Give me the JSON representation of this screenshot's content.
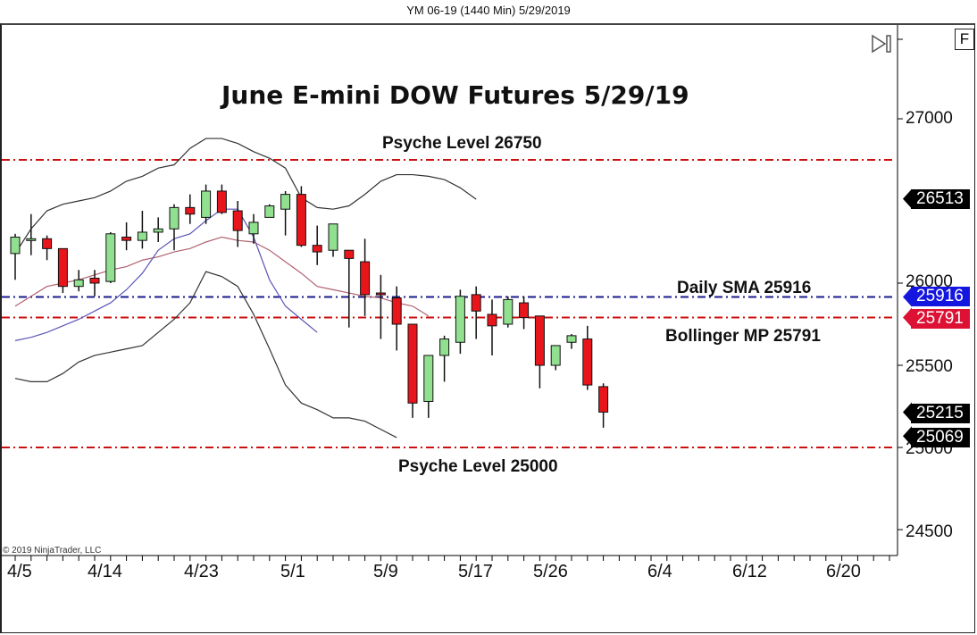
{
  "window": {
    "title": "YM 06-19 (1440 Min)  5/29/2019"
  },
  "toolbar": {
    "f_button": "F",
    "scroll_end_icon": "skip-to-end-icon"
  },
  "copyright": "© 2019 NinjaTrader, LLC",
  "colors": {
    "bull": "#90e090",
    "bear": "#e8151b",
    "psyche_line": "#cc1010",
    "sma_line": "#1a1a8c",
    "bollinger_mid": "#b06070",
    "bollinger_upper_lower": "#333333",
    "sma_curve": "#5a55b5",
    "badge_black": "#000000",
    "badge_blue": "#1515e0",
    "badge_red": "#dd1133"
  },
  "chart_data": {
    "type": "candlestick",
    "title": "June E-mini DOW Futures 5/29/19",
    "instrument": "YM 06-19 (1440 Min) 5/29/2019",
    "xlabel": "",
    "ylabel": "",
    "ylim": [
      24200,
      27500
    ],
    "y_ticks": [
      27000,
      26000,
      25500,
      25000,
      24500
    ],
    "x_ticks": [
      "4/5",
      "4/14",
      "4/23",
      "5/1",
      "5/9",
      "5/17",
      "5/26",
      "6/4",
      "6/12",
      "6/20"
    ],
    "grid": false,
    "candles": [
      {
        "date": "4/5",
        "open": 26180,
        "high": 26300,
        "low": 26020,
        "close": 26280
      },
      {
        "date": "4/8",
        "open": 26270,
        "high": 26420,
        "low": 26170,
        "close": 26270
      },
      {
        "date": "4/9",
        "open": 26270,
        "high": 26290,
        "low": 26140,
        "close": 26210
      },
      {
        "date": "4/10",
        "open": 26210,
        "high": 26210,
        "low": 25940,
        "close": 25980
      },
      {
        "date": "4/11",
        "open": 25980,
        "high": 26080,
        "low": 25950,
        "close": 26020
      },
      {
        "date": "4/12",
        "open": 26030,
        "high": 26080,
        "low": 25920,
        "close": 26000
      },
      {
        "date": "4/15",
        "open": 26010,
        "high": 26310,
        "low": 26000,
        "close": 26300
      },
      {
        "date": "4/16",
        "open": 26280,
        "high": 26370,
        "low": 26200,
        "close": 26260
      },
      {
        "date": "4/17",
        "open": 26260,
        "high": 26440,
        "low": 26210,
        "close": 26310
      },
      {
        "date": "4/18",
        "open": 26310,
        "high": 26400,
        "low": 26250,
        "close": 26330
      },
      {
        "date": "4/22",
        "open": 26330,
        "high": 26480,
        "low": 26200,
        "close": 26460
      },
      {
        "date": "4/23",
        "open": 26460,
        "high": 26540,
        "low": 26360,
        "close": 26420
      },
      {
        "date": "4/24",
        "open": 26400,
        "high": 26600,
        "low": 26360,
        "close": 26560
      },
      {
        "date": "4/25",
        "open": 26560,
        "high": 26600,
        "low": 26420,
        "close": 26430
      },
      {
        "date": "4/26",
        "open": 26440,
        "high": 26500,
        "low": 26220,
        "close": 26320
      },
      {
        "date": "4/29",
        "open": 26300,
        "high": 26420,
        "low": 26240,
        "close": 26370
      },
      {
        "date": "4/30",
        "open": 26400,
        "high": 26480,
        "low": 26400,
        "close": 26470
      },
      {
        "date": "5/1",
        "open": 26450,
        "high": 26560,
        "low": 26290,
        "close": 26540
      },
      {
        "date": "5/2",
        "open": 26540,
        "high": 26590,
        "low": 26220,
        "close": 26230
      },
      {
        "date": "5/3",
        "open": 26230,
        "high": 26350,
        "low": 26110,
        "close": 26190
      },
      {
        "date": "5/6",
        "open": 26200,
        "high": 26330,
        "low": 26160,
        "close": 26360
      },
      {
        "date": "5/7",
        "open": 26200,
        "high": 26200,
        "low": 25730,
        "close": 26150
      },
      {
        "date": "5/8",
        "open": 26130,
        "high": 26270,
        "low": 25800,
        "close": 25930
      },
      {
        "date": "5/9",
        "open": 25940,
        "high": 26050,
        "low": 25660,
        "close": 25930
      },
      {
        "date": "5/10",
        "open": 25910,
        "high": 25980,
        "low": 25590,
        "close": 25750
      },
      {
        "date": "5/13",
        "open": 25750,
        "high": 25750,
        "low": 25180,
        "close": 25270
      },
      {
        "date": "5/14",
        "open": 25280,
        "high": 25560,
        "low": 25180,
        "close": 25560
      },
      {
        "date": "5/15",
        "open": 25560,
        "high": 25680,
        "low": 25400,
        "close": 25660
      },
      {
        "date": "5/16",
        "open": 25640,
        "high": 25960,
        "low": 25570,
        "close": 25920
      },
      {
        "date": "5/17",
        "open": 25930,
        "high": 25980,
        "low": 25660,
        "close": 25830
      },
      {
        "date": "5/20",
        "open": 25810,
        "high": 25900,
        "low": 25560,
        "close": 25740
      },
      {
        "date": "5/21",
        "open": 25750,
        "high": 25920,
        "low": 25730,
        "close": 25900
      },
      {
        "date": "5/22",
        "open": 25880,
        "high": 25920,
        "low": 25720,
        "close": 25790
      },
      {
        "date": "5/23",
        "open": 25800,
        "high": 25800,
        "low": 25360,
        "close": 25500
      },
      {
        "date": "5/24",
        "open": 25500,
        "high": 25600,
        "low": 25470,
        "close": 25620
      },
      {
        "date": "5/28",
        "open": 25640,
        "high": 25690,
        "low": 25600,
        "close": 25680
      },
      {
        "date": "5/29",
        "open": 25660,
        "high": 25740,
        "low": 25350,
        "close": 25380
      },
      {
        "date": "5/29b",
        "open": 25370,
        "high": 25390,
        "low": 25120,
        "close": 25215
      }
    ],
    "horizontal_lines": [
      {
        "label": "Psyche Level 26750",
        "value": 26750,
        "style": "dash-dot",
        "color": "#cc1010"
      },
      {
        "label": "Daily SMA 25916",
        "value": 25916,
        "style": "dash-dot",
        "color": "#1a1a8c"
      },
      {
        "label": "Bollinger MP 25791",
        "value": 25791,
        "style": "dash-dot",
        "color": "#cc1010"
      },
      {
        "label": "Psyche Level 25000",
        "value": 25000,
        "style": "dash-dot",
        "color": "#cc1010"
      }
    ],
    "price_badges": [
      {
        "value": 26513,
        "color": "#000000"
      },
      {
        "value": 25916,
        "color": "#1515e0"
      },
      {
        "value": 25791,
        "color": "#dd1133"
      },
      {
        "value": 25215,
        "color": "#000000"
      },
      {
        "value": 25069,
        "color": "#000000"
      }
    ],
    "series": [
      {
        "name": "Bollinger Upper",
        "values": [
          26180,
          26330,
          26440,
          26480,
          26500,
          26520,
          26560,
          26620,
          26650,
          26700,
          26720,
          26820,
          26880,
          26880,
          26850,
          26800,
          26760,
          26700,
          26520,
          26460,
          26450,
          26470,
          26540,
          26620,
          26660,
          26660,
          26650,
          26630,
          26580,
          26510
        ]
      },
      {
        "name": "Bollinger Middle",
        "values": [
          25860,
          25920,
          25980,
          26000,
          26020,
          26050,
          26080,
          26100,
          26140,
          26160,
          26190,
          26210,
          26250,
          26280,
          26260,
          26250,
          26200,
          26130,
          26060,
          25980,
          25960,
          25940,
          25920,
          25910,
          25880,
          25860,
          25800
        ]
      },
      {
        "name": "Bollinger Lower",
        "values": [
          25420,
          25400,
          25400,
          25450,
          25520,
          25560,
          25580,
          25600,
          25620,
          25700,
          25780,
          25880,
          26070,
          26040,
          25980,
          25810,
          25600,
          25380,
          25270,
          25230,
          25180,
          25180,
          25160,
          25110,
          25060
        ]
      },
      {
        "name": "SMA",
        "values": [
          25650,
          25670,
          25700,
          25740,
          25780,
          25830,
          25880,
          25960,
          26060,
          26200,
          26270,
          26300,
          26380,
          26450,
          26450,
          26280,
          26020,
          25860,
          25780,
          25700
        ]
      }
    ]
  },
  "annotations": {
    "title": "June E-mini DOW Futures 5/29/19",
    "psyche_high": "Psyche Level 26750",
    "sma": "Daily SMA 25916",
    "bollinger": "Bollinger MP 25791",
    "psyche_low": "Psyche Level 25000"
  },
  "y_axis": {
    "ticks": [
      "27000",
      "26000",
      "25500",
      "25000",
      "24500"
    ]
  },
  "x_axis": {
    "ticks": [
      "4/5",
      "4/14",
      "4/23",
      "5/1",
      "5/9",
      "5/17",
      "5/26",
      "6/4",
      "6/12",
      "6/20"
    ]
  },
  "badges": [
    "26513",
    "25916",
    "25791",
    "25215",
    "25069"
  ]
}
